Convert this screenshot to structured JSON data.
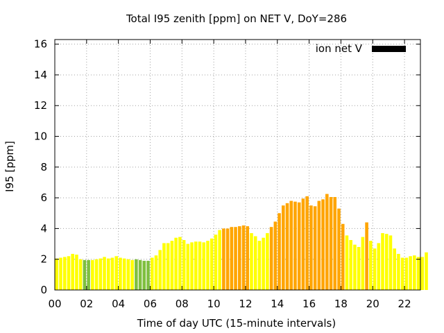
{
  "chart_data": {
    "type": "bar",
    "title": "Total I95 zenith [ppm] on NET V, DoY=286",
    "xlabel": "Time of day UTC (15-minute intervals)",
    "ylabel": "I95 [ppm]",
    "xlim": [
      0,
      23
    ],
    "ylim": [
      0,
      16.3
    ],
    "grid": true,
    "legend_placement": "top-right",
    "legend": [
      {
        "name": "ion net V",
        "color": "#000000"
      }
    ],
    "x_tick_labels": [
      "00",
      "02",
      "04",
      "06",
      "08",
      "10",
      "12",
      "14",
      "16",
      "18",
      "20",
      "22"
    ],
    "x_ticks": [
      0,
      2,
      4,
      6,
      8,
      10,
      12,
      14,
      16,
      18,
      20,
      22
    ],
    "y_ticks": [
      0,
      2,
      4,
      6,
      8,
      10,
      12,
      14,
      16
    ],
    "bar_interval_hours": 0.25,
    "category_colors": {
      "yellow": "#ffff00",
      "green": "#7fbf3f",
      "orange": "#ffa500"
    },
    "values": [
      2.05,
      2.1,
      2.15,
      2.2,
      2.35,
      2.3,
      2.0,
      1.95,
      1.95,
      1.95,
      2.0,
      2.05,
      2.15,
      2.05,
      2.1,
      2.2,
      2.1,
      2.05,
      2.0,
      1.95,
      2.0,
      1.95,
      1.9,
      1.9,
      2.1,
      2.25,
      2.6,
      3.05,
      3.05,
      3.2,
      3.4,
      3.45,
      3.25,
      3.0,
      3.1,
      3.15,
      3.15,
      3.1,
      3.2,
      3.35,
      3.6,
      3.9,
      4.0,
      4.0,
      4.1,
      4.1,
      4.15,
      4.2,
      4.15,
      3.7,
      3.5,
      3.2,
      3.4,
      3.7,
      4.1,
      4.45,
      5.0,
      5.5,
      5.65,
      5.8,
      5.75,
      5.7,
      5.95,
      6.1,
      5.5,
      5.45,
      5.8,
      5.9,
      6.25,
      6.05,
      6.05,
      5.3,
      4.3,
      3.55,
      3.25,
      2.95,
      2.8,
      3.45,
      4.4,
      3.2,
      2.7,
      3.05,
      3.7,
      3.65,
      3.55,
      2.7,
      2.35,
      2.1,
      2.1,
      2.2,
      2.25,
      2.15,
      2.15,
      2.45
    ],
    "colors": [
      "yellow",
      "yellow",
      "yellow",
      "yellow",
      "yellow",
      "yellow",
      "yellow",
      "green",
      "green",
      "yellow",
      "yellow",
      "yellow",
      "yellow",
      "yellow",
      "yellow",
      "yellow",
      "yellow",
      "yellow",
      "yellow",
      "yellow",
      "green",
      "green",
      "green",
      "green",
      "yellow",
      "yellow",
      "yellow",
      "yellow",
      "yellow",
      "yellow",
      "yellow",
      "yellow",
      "yellow",
      "yellow",
      "yellow",
      "yellow",
      "yellow",
      "yellow",
      "yellow",
      "yellow",
      "yellow",
      "yellow",
      "orange",
      "orange",
      "orange",
      "orange",
      "orange",
      "orange",
      "orange",
      "yellow",
      "yellow",
      "yellow",
      "yellow",
      "yellow",
      "orange",
      "orange",
      "orange",
      "orange",
      "orange",
      "orange",
      "orange",
      "orange",
      "orange",
      "orange",
      "orange",
      "orange",
      "orange",
      "orange",
      "orange",
      "orange",
      "orange",
      "orange",
      "orange",
      "yellow",
      "yellow",
      "yellow",
      "yellow",
      "yellow",
      "orange",
      "yellow",
      "yellow",
      "yellow",
      "yellow",
      "yellow",
      "yellow",
      "yellow",
      "yellow",
      "yellow",
      "yellow",
      "yellow",
      "yellow",
      "yellow",
      "yellow",
      "yellow"
    ]
  }
}
